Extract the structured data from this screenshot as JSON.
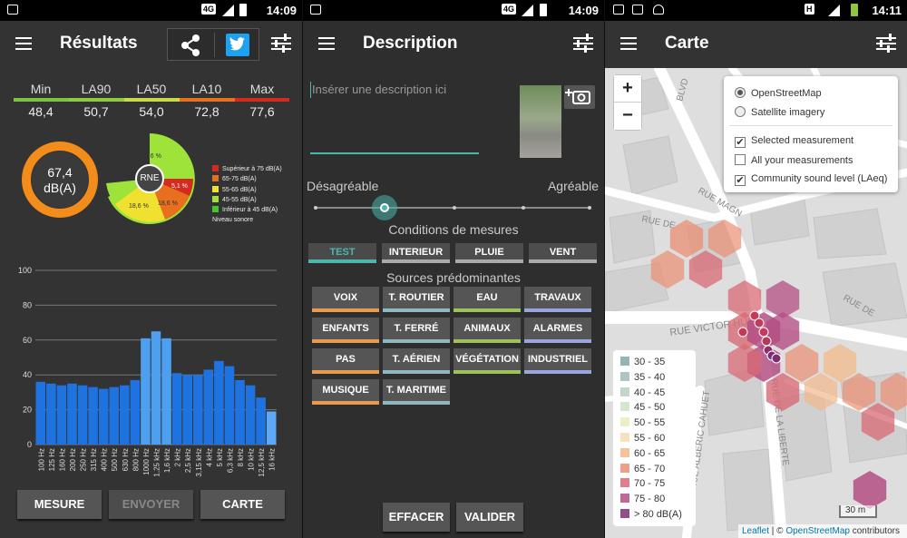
{
  "status": {
    "p1": {
      "network": "4G",
      "time": "14:09"
    },
    "p2": {
      "network": "4G",
      "time": "14:09"
    },
    "p3": {
      "network": "H",
      "time": "14:11"
    }
  },
  "results": {
    "title": "Résultats",
    "stats": [
      {
        "label": "Min",
        "value": "48,4",
        "color": "#7cc442"
      },
      {
        "label": "LA90",
        "value": "50,7",
        "color": "#7cc442"
      },
      {
        "label": "LA50",
        "value": "54,0",
        "color": "#c9d94a"
      },
      {
        "label": "LA10",
        "value": "72,8",
        "color": "#e86f1e"
      },
      {
        "label": "Max",
        "value": "77,6",
        "color": "#d62a1e"
      }
    ],
    "gauge": {
      "value": "67,4",
      "unit": "dB(A)",
      "ring_color": "#f28c1a"
    },
    "rne": {
      "label": "RNE",
      "slice_labels": [
        "57,6 %",
        "18,6 %",
        "18,6 %",
        "5,1 %"
      ],
      "legend": [
        {
          "label": "Supérieur à 75 dB(A)",
          "color": "#d62a1e"
        },
        {
          "label": "65-75 dB(A)",
          "color": "#e86f1e"
        },
        {
          "label": "55-65 dB(A)",
          "color": "#f0e130"
        },
        {
          "label": "45-55 dB(A)",
          "color": "#9ee33a"
        },
        {
          "label": "Inférieur à 45 dB(A)",
          "color": "#45c72a"
        }
      ],
      "legend_title": "Niveau sonore"
    },
    "buttons": {
      "measure": "MESURE",
      "send": "ENVOYER",
      "map": "CARTE"
    }
  },
  "chart_data": {
    "type": "bar",
    "title": "",
    "xlabel": "",
    "ylabel": "",
    "ylim": [
      0,
      100
    ],
    "yticks": [
      0,
      20,
      40,
      60,
      80,
      100
    ],
    "grid": true,
    "categories": [
      "100 Hz",
      "125 Hz",
      "160 Hz",
      "200 Hz",
      "250 Hz",
      "315 Hz",
      "400 Hz",
      "500 Hz",
      "630 Hz",
      "800 Hz",
      "1000 Hz",
      "1,25 kHz",
      "1,6 kHz",
      "2 kHz",
      "2,5 kHz",
      "3,15 kHz",
      "4 kHz",
      "5 kHz",
      "6,3 kHz",
      "8 kHz",
      "10 kHz",
      "12,5 kHz",
      "16 kHz"
    ],
    "values": [
      36,
      35,
      34,
      35,
      34,
      33,
      32,
      33,
      34,
      37,
      61,
      65,
      61,
      41,
      40,
      40,
      43,
      48,
      45,
      37,
      34,
      27,
      19
    ]
  },
  "description": {
    "title": "Description",
    "placeholder": "Insérer une description ici",
    "slider": {
      "left": "Désagréable",
      "right": "Agréable",
      "position": 0.27
    },
    "conditions_title": "Conditions de mesures",
    "conditions": [
      {
        "label": "TEST",
        "selected": true
      },
      {
        "label": "INTERIEUR"
      },
      {
        "label": "PLUIE"
      },
      {
        "label": "VENT"
      }
    ],
    "sources_title": "Sources prédominantes",
    "sources": [
      {
        "label": "VOIX",
        "color": "#e89a50"
      },
      {
        "label": "T. ROUTIER",
        "color": "#8fb7bd"
      },
      {
        "label": "EAU",
        "color": "#9fc05a"
      },
      {
        "label": "TRAVAUX",
        "color": "#9aa5e0"
      },
      {
        "label": "ENFANTS",
        "color": "#e89a50"
      },
      {
        "label": "T. FERRÉ",
        "color": "#8fb7bd"
      },
      {
        "label": "ANIMAUX",
        "color": "#9fc05a"
      },
      {
        "label": "ALARMES",
        "color": "#9aa5e0"
      },
      {
        "label": "PAS",
        "color": "#e89a50"
      },
      {
        "label": "T. AÉRIEN",
        "color": "#8fb7bd"
      },
      {
        "label": "VÉGÉTATION",
        "color": "#9fc05a"
      },
      {
        "label": "INDUSTRIEL",
        "color": "#9aa5e0"
      },
      {
        "label": "MUSIQUE",
        "color": "#e89a50"
      },
      {
        "label": "T. MARITIME",
        "color": "#8fb7bd"
      }
    ],
    "buttons": {
      "clear": "EFFACER",
      "validate": "VALIDER"
    }
  },
  "map": {
    "title": "Carte",
    "zoom_in": "+",
    "zoom_out": "−",
    "layers": {
      "base": [
        {
          "label": "OpenStreetMap",
          "checked": true
        },
        {
          "label": "Satellite imagery",
          "checked": false
        }
      ],
      "overlays": [
        {
          "label": "Selected measurement",
          "checked": true
        },
        {
          "label": "All your measurements",
          "checked": false
        },
        {
          "label": "Community sound level (LAeq)",
          "checked": true
        }
      ]
    },
    "streets": [
      "RUE VICTOR HUGO",
      "RUE DE",
      "RUE MAGN",
      "RUE DE",
      "RUE DE LA LIBERTE",
      "RUE ALBERIC CAHUET",
      "BLVD"
    ],
    "legend": [
      {
        "label": "30 - 35",
        "color": "#82a8a8"
      },
      {
        "label": "35 - 40",
        "color": "#a0bcb8"
      },
      {
        "label": "40 - 45",
        "color": "#b9d0c2"
      },
      {
        "label": "45 - 50",
        "color": "#cfe0c4"
      },
      {
        "label": "50 - 55",
        "color": "#e6eebd"
      },
      {
        "label": "55 - 60",
        "color": "#f5ddb0"
      },
      {
        "label": "60 - 65",
        "color": "#f3b98a"
      },
      {
        "label": "65 - 70",
        "color": "#e98f72"
      },
      {
        "label": "70 - 75",
        "color": "#d86a76"
      },
      {
        "label": "75 - 80",
        "color": "#b44f84"
      },
      {
        "label": "> 80 dB(A)",
        "color": "#7e2f74"
      }
    ],
    "scale": "30 m",
    "attribution": {
      "leaflet": "Leaflet",
      "sep": " | © ",
      "osm": "OpenStreetMap",
      "rest": " contributors"
    }
  }
}
